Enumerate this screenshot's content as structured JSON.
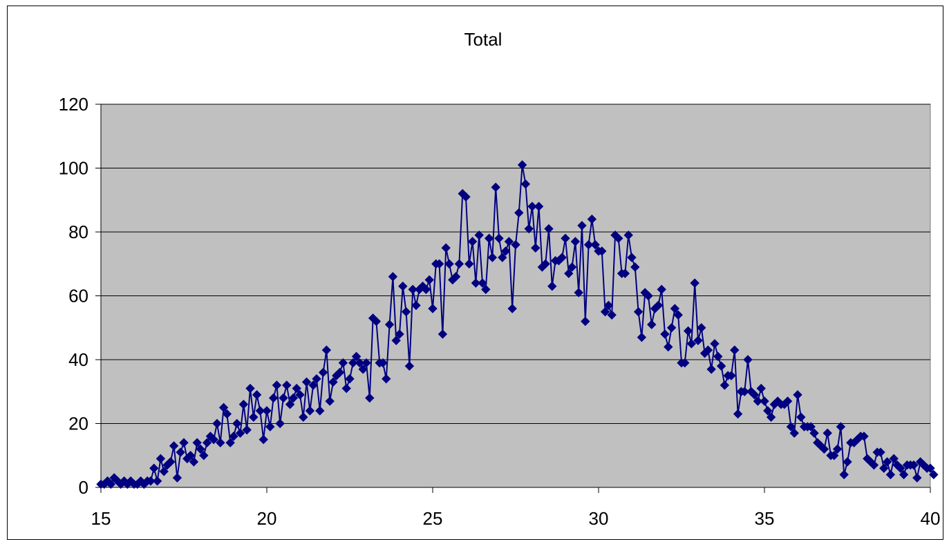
{
  "chart_data": {
    "type": "line",
    "title": "Total",
    "xlabel": "",
    "ylabel": "",
    "xlim": [
      15,
      40
    ],
    "ylim": [
      0,
      120
    ],
    "xticks": [
      15,
      20,
      25,
      30,
      35,
      40
    ],
    "yticks": [
      0,
      20,
      40,
      60,
      80,
      100,
      120
    ],
    "grid": "horizontal",
    "legend": "none",
    "colors": {
      "series": "#000080",
      "plot_background": "#c0c0c0",
      "gridline": "#000000"
    },
    "series": [
      {
        "marker": "diamond",
        "points": [
          [
            15.0,
            1
          ],
          [
            15.1,
            1
          ],
          [
            15.2,
            2
          ],
          [
            15.3,
            1
          ],
          [
            15.4,
            3
          ],
          [
            15.5,
            2
          ],
          [
            15.6,
            1
          ],
          [
            15.7,
            2
          ],
          [
            15.8,
            1
          ],
          [
            15.9,
            2
          ],
          [
            16.0,
            1
          ],
          [
            16.1,
            1
          ],
          [
            16.2,
            2
          ],
          [
            16.3,
            1
          ],
          [
            16.4,
            2
          ],
          [
            16.5,
            2
          ],
          [
            16.6,
            6
          ],
          [
            16.7,
            2
          ],
          [
            16.8,
            9
          ],
          [
            16.9,
            5
          ],
          [
            17.0,
            7
          ],
          [
            17.1,
            8
          ],
          [
            17.2,
            13
          ],
          [
            17.3,
            3
          ],
          [
            17.4,
            11
          ],
          [
            17.5,
            14
          ],
          [
            17.6,
            9
          ],
          [
            17.7,
            10
          ],
          [
            17.8,
            8
          ],
          [
            17.9,
            14
          ],
          [
            18.0,
            12
          ],
          [
            18.1,
            10
          ],
          [
            18.2,
            14
          ],
          [
            18.3,
            16
          ],
          [
            18.4,
            15
          ],
          [
            18.5,
            20
          ],
          [
            18.6,
            14
          ],
          [
            18.7,
            25
          ],
          [
            18.8,
            23
          ],
          [
            18.9,
            14
          ],
          [
            19.0,
            16
          ],
          [
            19.1,
            20
          ],
          [
            19.2,
            17
          ],
          [
            19.3,
            26
          ],
          [
            19.4,
            18
          ],
          [
            19.5,
            31
          ],
          [
            19.6,
            22
          ],
          [
            19.7,
            29
          ],
          [
            19.8,
            24
          ],
          [
            19.9,
            15
          ],
          [
            20.0,
            24
          ],
          [
            20.1,
            19
          ],
          [
            20.2,
            28
          ],
          [
            20.3,
            32
          ],
          [
            20.4,
            20
          ],
          [
            20.5,
            28
          ],
          [
            20.6,
            32
          ],
          [
            20.7,
            26
          ],
          [
            20.8,
            28
          ],
          [
            20.9,
            31
          ],
          [
            21.0,
            29
          ],
          [
            21.1,
            22
          ],
          [
            21.2,
            33
          ],
          [
            21.3,
            24
          ],
          [
            21.4,
            32
          ],
          [
            21.5,
            34
          ],
          [
            21.6,
            24
          ],
          [
            21.7,
            36
          ],
          [
            21.8,
            43
          ],
          [
            21.9,
            27
          ],
          [
            22.0,
            33
          ],
          [
            22.1,
            35
          ],
          [
            22.2,
            36
          ],
          [
            22.3,
            39
          ],
          [
            22.4,
            31
          ],
          [
            22.5,
            34
          ],
          [
            22.6,
            39
          ],
          [
            22.7,
            41
          ],
          [
            22.8,
            39
          ],
          [
            22.9,
            37
          ],
          [
            23.0,
            39
          ],
          [
            23.1,
            28
          ],
          [
            23.2,
            53
          ],
          [
            23.3,
            52
          ],
          [
            23.4,
            39
          ],
          [
            23.5,
            39
          ],
          [
            23.6,
            34
          ],
          [
            23.7,
            51
          ],
          [
            23.8,
            66
          ],
          [
            23.9,
            46
          ],
          [
            24.0,
            48
          ],
          [
            24.1,
            63
          ],
          [
            24.2,
            55
          ],
          [
            24.3,
            38
          ],
          [
            24.4,
            62
          ],
          [
            24.5,
            57
          ],
          [
            24.6,
            62
          ],
          [
            24.7,
            63
          ],
          [
            24.8,
            62
          ],
          [
            24.9,
            65
          ],
          [
            25.0,
            56
          ],
          [
            25.1,
            70
          ],
          [
            25.2,
            70
          ],
          [
            25.3,
            48
          ],
          [
            25.4,
            75
          ],
          [
            25.5,
            70
          ],
          [
            25.6,
            65
          ],
          [
            25.7,
            66
          ],
          [
            25.8,
            70
          ],
          [
            25.9,
            92
          ],
          [
            26.0,
            91
          ],
          [
            26.1,
            70
          ],
          [
            26.2,
            77
          ],
          [
            26.3,
            64
          ],
          [
            26.4,
            79
          ],
          [
            26.5,
            64
          ],
          [
            26.6,
            62
          ],
          [
            26.7,
            78
          ],
          [
            26.8,
            72
          ],
          [
            26.9,
            94
          ],
          [
            27.0,
            78
          ],
          [
            27.1,
            72
          ],
          [
            27.2,
            74
          ],
          [
            27.3,
            77
          ],
          [
            27.4,
            56
          ],
          [
            27.5,
            76
          ],
          [
            27.6,
            86
          ],
          [
            27.7,
            101
          ],
          [
            27.8,
            95
          ],
          [
            27.9,
            81
          ],
          [
            28.0,
            88
          ],
          [
            28.1,
            75
          ],
          [
            28.2,
            88
          ],
          [
            28.3,
            69
          ],
          [
            28.4,
            70
          ],
          [
            28.5,
            81
          ],
          [
            28.6,
            63
          ],
          [
            28.7,
            71
          ],
          [
            28.8,
            71
          ],
          [
            28.9,
            72
          ],
          [
            29.0,
            78
          ],
          [
            29.1,
            67
          ],
          [
            29.2,
            69
          ],
          [
            29.3,
            77
          ],
          [
            29.4,
            61
          ],
          [
            29.5,
            82
          ],
          [
            29.6,
            52
          ],
          [
            29.7,
            76
          ],
          [
            29.8,
            84
          ],
          [
            29.9,
            76
          ],
          [
            30.0,
            74
          ],
          [
            30.1,
            74
          ],
          [
            30.2,
            55
          ],
          [
            30.3,
            57
          ],
          [
            30.4,
            54
          ],
          [
            30.5,
            79
          ],
          [
            30.6,
            78
          ],
          [
            30.7,
            67
          ],
          [
            30.8,
            67
          ],
          [
            30.9,
            79
          ],
          [
            31.0,
            72
          ],
          [
            31.1,
            69
          ],
          [
            31.2,
            55
          ],
          [
            31.3,
            47
          ],
          [
            31.4,
            61
          ],
          [
            31.5,
            60
          ],
          [
            31.6,
            51
          ],
          [
            31.7,
            56
          ],
          [
            31.8,
            57
          ],
          [
            31.9,
            62
          ],
          [
            32.0,
            48
          ],
          [
            32.1,
            44
          ],
          [
            32.2,
            50
          ],
          [
            32.3,
            56
          ],
          [
            32.4,
            54
          ],
          [
            32.5,
            39
          ],
          [
            32.6,
            39
          ],
          [
            32.7,
            49
          ],
          [
            32.8,
            45
          ],
          [
            32.9,
            64
          ],
          [
            33.0,
            46
          ],
          [
            33.1,
            50
          ],
          [
            33.2,
            42
          ],
          [
            33.3,
            43
          ],
          [
            33.4,
            37
          ],
          [
            33.5,
            45
          ],
          [
            33.6,
            41
          ],
          [
            33.7,
            38
          ],
          [
            33.8,
            32
          ],
          [
            33.9,
            35
          ],
          [
            34.0,
            35
          ],
          [
            34.1,
            43
          ],
          [
            34.2,
            23
          ],
          [
            34.3,
            30
          ],
          [
            34.4,
            30
          ],
          [
            34.5,
            40
          ],
          [
            34.6,
            30
          ],
          [
            34.7,
            29
          ],
          [
            34.8,
            27
          ],
          [
            34.9,
            31
          ],
          [
            35.0,
            27
          ],
          [
            35.1,
            24
          ],
          [
            35.2,
            22
          ],
          [
            35.3,
            26
          ],
          [
            35.4,
            27
          ],
          [
            35.5,
            26
          ],
          [
            35.6,
            26
          ],
          [
            35.7,
            27
          ],
          [
            35.8,
            19
          ],
          [
            35.9,
            17
          ],
          [
            36.0,
            29
          ],
          [
            36.1,
            22
          ],
          [
            36.2,
            19
          ],
          [
            36.3,
            19
          ],
          [
            36.4,
            19
          ],
          [
            36.5,
            17
          ],
          [
            36.6,
            14
          ],
          [
            36.7,
            13
          ],
          [
            36.8,
            12
          ],
          [
            36.9,
            17
          ],
          [
            37.0,
            10
          ],
          [
            37.1,
            10
          ],
          [
            37.2,
            12
          ],
          [
            37.3,
            19
          ],
          [
            37.4,
            4
          ],
          [
            37.5,
            8
          ],
          [
            37.6,
            14
          ],
          [
            37.7,
            14
          ],
          [
            37.8,
            15
          ],
          [
            37.9,
            16
          ],
          [
            38.0,
            16
          ],
          [
            38.1,
            9
          ],
          [
            38.2,
            8
          ],
          [
            38.3,
            7
          ],
          [
            38.4,
            11
          ],
          [
            38.5,
            11
          ],
          [
            38.6,
            6
          ],
          [
            38.7,
            8
          ],
          [
            38.8,
            4
          ],
          [
            38.9,
            9
          ],
          [
            39.0,
            7
          ],
          [
            39.1,
            6
          ],
          [
            39.2,
            4
          ],
          [
            39.3,
            7
          ],
          [
            39.4,
            7
          ],
          [
            39.5,
            7
          ],
          [
            39.6,
            3
          ],
          [
            39.7,
            8
          ],
          [
            39.8,
            7
          ],
          [
            39.9,
            6
          ],
          [
            40.0,
            6
          ],
          [
            40.1,
            4
          ]
        ]
      }
    ]
  }
}
